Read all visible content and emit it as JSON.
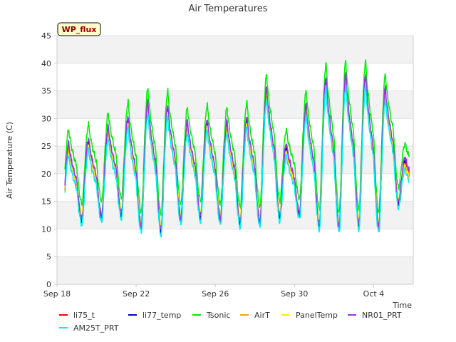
{
  "chart_data": {
    "type": "line",
    "title": "Air Temperatures",
    "xlabel": "Time",
    "ylabel": "Air Temperature (C)",
    "site_badge": "WP_flux",
    "ylim": [
      0,
      45
    ],
    "yticks": [
      0,
      5,
      10,
      15,
      20,
      25,
      30,
      35,
      40,
      45
    ],
    "xlim": [
      "2023-09-18",
      "2023-10-06"
    ],
    "xticks": [
      {
        "label": "Sep 18",
        "date": "2023-09-18"
      },
      {
        "label": "Sep 22",
        "date": "2023-09-22"
      },
      {
        "label": "Sep 26",
        "date": "2023-09-26"
      },
      {
        "label": "Sep 30",
        "date": "2023-09-30"
      },
      {
        "label": "Oct 4",
        "date": "2023-10-04"
      }
    ],
    "grid": "horizontal bands",
    "legend_position": "bottom",
    "daily_extremes": [
      {
        "date": "2023-09-18",
        "min": 10.5,
        "max": 25.0
      },
      {
        "date": "2023-09-19",
        "min": 11.0,
        "max": 26.0
      },
      {
        "date": "2023-09-20",
        "min": 11.5,
        "max": 28.0
      },
      {
        "date": "2023-09-21",
        "min": 12.0,
        "max": 30.0
      },
      {
        "date": "2023-09-22",
        "min": 9.5,
        "max": 32.5
      },
      {
        "date": "2023-09-23",
        "min": 9.0,
        "max": 32.0
      },
      {
        "date": "2023-09-24",
        "min": 11.0,
        "max": 29.0
      },
      {
        "date": "2023-09-25",
        "min": 11.5,
        "max": 29.5
      },
      {
        "date": "2023-09-26",
        "min": 11.0,
        "max": 29.0
      },
      {
        "date": "2023-09-27",
        "min": 10.5,
        "max": 30.0
      },
      {
        "date": "2023-09-28",
        "min": 10.5,
        "max": 35.0
      },
      {
        "date": "2023-09-29",
        "min": 11.5,
        "max": 25.0
      },
      {
        "date": "2023-09-30",
        "min": 12.0,
        "max": 32.0
      },
      {
        "date": "2023-10-01",
        "min": 10.0,
        "max": 37.0
      },
      {
        "date": "2023-10-02",
        "min": 9.5,
        "max": 37.5
      },
      {
        "date": "2023-10-03",
        "min": 10.0,
        "max": 37.5
      },
      {
        "date": "2023-10-04",
        "min": 9.5,
        "max": 35.0
      },
      {
        "date": "2023-10-05",
        "min": 14.0,
        "max": 22.5
      }
    ],
    "series": [
      {
        "name": "li75_t",
        "color": "#ff0000",
        "max_offset": 0.0,
        "min_offset": 0.6
      },
      {
        "name": "li77_temp",
        "color": "#0000cc",
        "max_offset": -0.5,
        "min_offset": 0.4
      },
      {
        "name": "Tsonic",
        "color": "#00ee00",
        "max_offset": 3.0,
        "min_offset": 3.5
      },
      {
        "name": "AirT",
        "color": "#ffa500",
        "max_offset": -0.8,
        "min_offset": 1.2
      },
      {
        "name": "PanelTemp",
        "color": "#ffee00",
        "max_offset": -1.2,
        "min_offset": 1.6
      },
      {
        "name": "NR01_PRT",
        "color": "#9933ee",
        "max_offset": 0.6,
        "min_offset": 0.9
      },
      {
        "name": "AM25T_PRT",
        "color": "#00eeee",
        "max_offset": -1.6,
        "min_offset": -0.2
      }
    ]
  }
}
